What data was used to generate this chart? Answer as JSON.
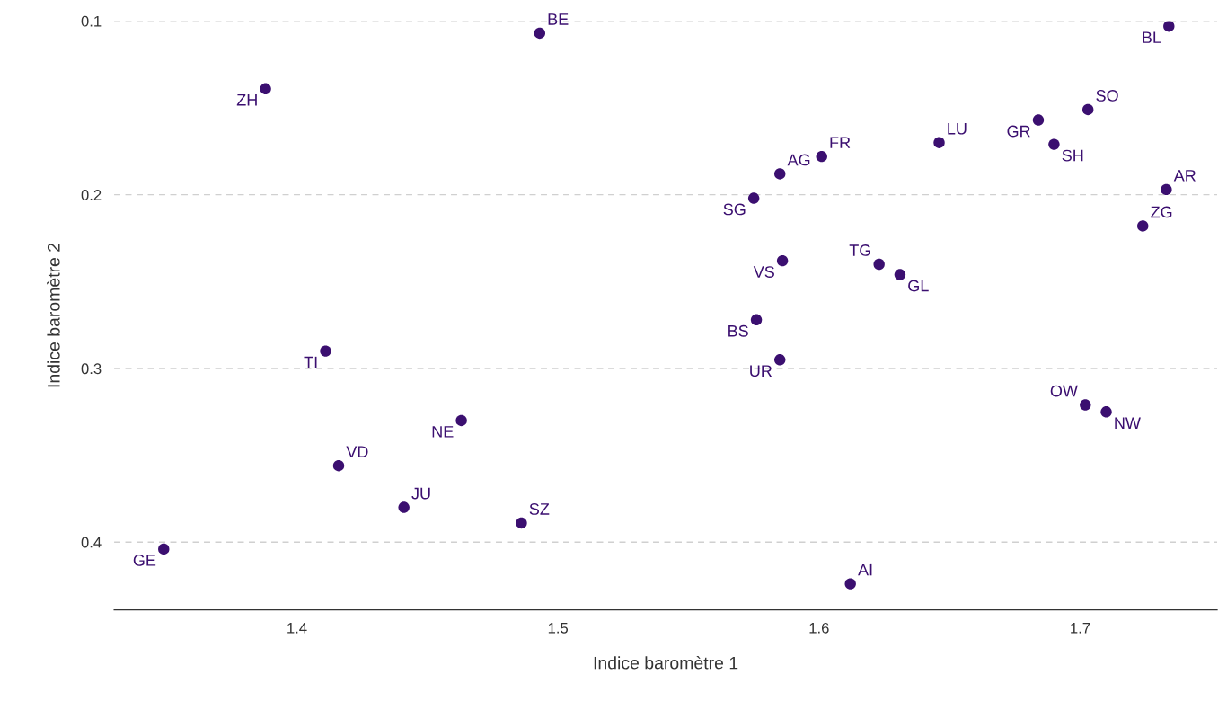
{
  "chart_data": {
    "type": "scatter",
    "xlabel": "Indice baromètre 1",
    "ylabel": "Indice baromètre 2",
    "xlim": [
      1.33,
      1.7525
    ],
    "ylim": [
      0.439,
      0.1
    ],
    "xticks": [
      1.4,
      1.5,
      1.6,
      1.7
    ],
    "yticks": [
      0.1,
      0.2,
      0.3,
      0.4
    ],
    "grid": "y",
    "marker": "circle",
    "series": [
      {
        "color": "#3b0f70",
        "x": [
          1.493,
          1.734,
          1.388,
          1.703,
          1.684,
          1.646,
          1.69,
          1.601,
          1.585,
          1.575,
          1.733,
          1.724,
          1.586,
          1.623,
          1.631,
          1.576,
          1.411,
          1.585,
          1.702,
          1.71,
          1.463,
          1.416,
          1.441,
          1.486,
          1.349,
          1.612
        ],
        "values": [
          0.107,
          0.103,
          0.139,
          0.151,
          0.157,
          0.17,
          0.171,
          0.178,
          0.188,
          0.202,
          0.197,
          0.218,
          0.238,
          0.24,
          0.246,
          0.272,
          0.29,
          0.295,
          0.321,
          0.325,
          0.33,
          0.356,
          0.38,
          0.389,
          0.404,
          0.424
        ]
      }
    ],
    "annotations": [
      {
        "text": "BE",
        "x": 1.493,
        "y": 0.107
      },
      {
        "text": "BL",
        "x": 1.734,
        "y": 0.103
      },
      {
        "text": "ZH",
        "x": 1.388,
        "y": 0.139
      },
      {
        "text": "SO",
        "x": 1.703,
        "y": 0.151
      },
      {
        "text": "GR",
        "x": 1.684,
        "y": 0.157
      },
      {
        "text": "LU",
        "x": 1.646,
        "y": 0.17
      },
      {
        "text": "SH",
        "x": 1.69,
        "y": 0.171
      },
      {
        "text": "FR",
        "x": 1.601,
        "y": 0.178
      },
      {
        "text": "AG",
        "x": 1.585,
        "y": 0.188
      },
      {
        "text": "SG",
        "x": 1.575,
        "y": 0.202
      },
      {
        "text": "AR",
        "x": 1.733,
        "y": 0.197
      },
      {
        "text": "ZG",
        "x": 1.724,
        "y": 0.218
      },
      {
        "text": "VS",
        "x": 1.586,
        "y": 0.238
      },
      {
        "text": "TG",
        "x": 1.623,
        "y": 0.24
      },
      {
        "text": "GL",
        "x": 1.631,
        "y": 0.246
      },
      {
        "text": "BS",
        "x": 1.576,
        "y": 0.272
      },
      {
        "text": "TI",
        "x": 1.411,
        "y": 0.29
      },
      {
        "text": "UR",
        "x": 1.585,
        "y": 0.295
      },
      {
        "text": "OW",
        "x": 1.702,
        "y": 0.321
      },
      {
        "text": "NW",
        "x": 1.71,
        "y": 0.325
      },
      {
        "text": "NE",
        "x": 1.463,
        "y": 0.33
      },
      {
        "text": "VD",
        "x": 1.416,
        "y": 0.356
      },
      {
        "text": "JU",
        "x": 1.441,
        "y": 0.38
      },
      {
        "text": "SZ",
        "x": 1.486,
        "y": 0.389
      },
      {
        "text": "GE",
        "x": 1.349,
        "y": 0.404
      },
      {
        "text": "AI",
        "x": 1.612,
        "y": 0.424
      }
    ]
  }
}
